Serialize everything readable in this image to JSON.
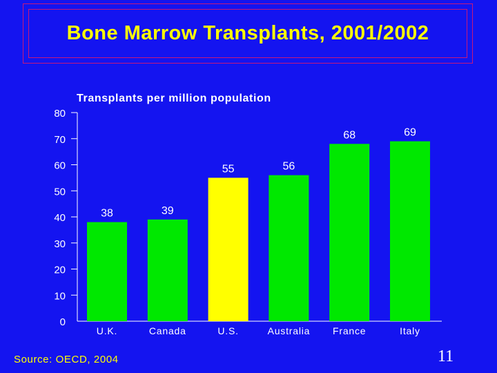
{
  "slide": {
    "title": "Bone Marrow Transplants, 2001/2002",
    "source": "Source: OECD, 2004",
    "page_number": "11"
  },
  "colors": {
    "background": "#1414f0",
    "title_text": "#ffff00",
    "title_border": "#c8187a",
    "bar_default": "#00e800",
    "bar_highlight": "#ffff00",
    "axis_text": "#ffffff",
    "plot_label_text": "#ffffff"
  },
  "chart_data": {
    "type": "bar",
    "subtitle": "Transplants per million population",
    "categories": [
      "U.K.",
      "Canada",
      "U.S.",
      "Australia",
      "France",
      "Italy"
    ],
    "values": [
      38,
      39,
      55,
      56,
      68,
      69
    ],
    "data_labels": [
      "38",
      "39",
      "55",
      "56",
      "68",
      "69"
    ],
    "highlight": "U.S.",
    "ylim": [
      0,
      80
    ],
    "yticks": [
      0,
      10,
      20,
      30,
      40,
      50,
      60,
      70,
      80
    ],
    "xlabel": "",
    "ylabel": "",
    "grid": false,
    "legend": "none"
  }
}
